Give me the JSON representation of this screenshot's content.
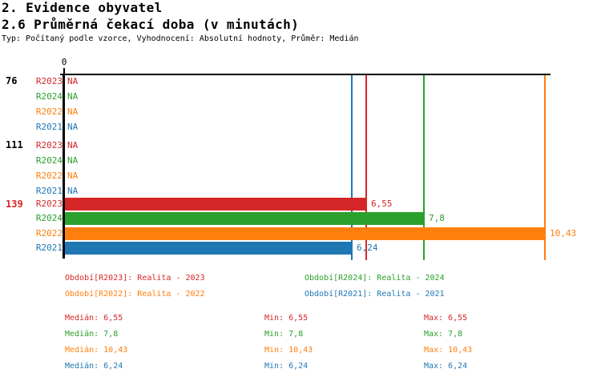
{
  "header": {
    "title1": "2. Evidence obyvatel",
    "title2": "2.6 Průměrná čekací doba (v minutách)",
    "subtitle": "Typ: Počítaný podle vzorce, Vyhodnocení: Absolutní hodnoty, Průměr: Medián"
  },
  "colors": {
    "R2023": "#d62728",
    "R2024": "#2ca02c",
    "R2022": "#ff7f0e",
    "R2021": "#1f77b4",
    "axis": "#000000"
  },
  "chart_data": {
    "type": "bar",
    "orientation": "horizontal",
    "title": "2.6 Průměrná čekací doba (v minutách)",
    "xlabel": "",
    "ylabel": "",
    "axis": {
      "min": 0,
      "tick_labels": [
        "0"
      ],
      "grid": false
    },
    "series_order": [
      "R2023",
      "R2024",
      "R2022",
      "R2021"
    ],
    "groups": [
      {
        "label": "76",
        "label_color": "#000000",
        "rows": [
          {
            "series": "R2023",
            "display": "NA",
            "value": null
          },
          {
            "series": "R2024",
            "display": "NA",
            "value": null
          },
          {
            "series": "R2022",
            "display": "NA",
            "value": null
          },
          {
            "series": "R2021",
            "display": "NA",
            "value": null
          }
        ]
      },
      {
        "label": "111",
        "label_color": "#000000",
        "rows": [
          {
            "series": "R2023",
            "display": "NA",
            "value": null
          },
          {
            "series": "R2024",
            "display": "NA",
            "value": null
          },
          {
            "series": "R2022",
            "display": "NA",
            "value": null
          },
          {
            "series": "R2021",
            "display": "NA",
            "value": null
          }
        ]
      },
      {
        "label": "139",
        "label_color": "#d62728",
        "rows": [
          {
            "series": "R2023",
            "display": "6,55",
            "value": 6.55
          },
          {
            "series": "R2024",
            "display": "7,8",
            "value": 7.8
          },
          {
            "series": "R2022",
            "display": "10,43",
            "value": 10.43
          },
          {
            "series": "R2021",
            "display": "6,24",
            "value": 6.24
          }
        ]
      }
    ],
    "reference_lines": [
      {
        "series": "R2023",
        "value": 6.55
      },
      {
        "series": "R2024",
        "value": 7.8
      },
      {
        "series": "R2022",
        "value": 10.43
      },
      {
        "series": "R2021",
        "value": 6.24
      }
    ]
  },
  "legend": {
    "items": [
      {
        "series": "R2023",
        "label": "Období[R2023]: Realita - 2023",
        "col": 0,
        "row": 0
      },
      {
        "series": "R2024",
        "label": "Období[R2024]: Realita - 2024",
        "col": 1,
        "row": 0
      },
      {
        "series": "R2022",
        "label": "Období[R2022]: Realita - 2022",
        "col": 0,
        "row": 1
      },
      {
        "series": "R2021",
        "label": "Období[R2021]: Realita - 2021",
        "col": 1,
        "row": 1
      }
    ]
  },
  "stats": {
    "rows": [
      {
        "series": "R2023",
        "median": "Medián: 6,55",
        "min": "Min: 6,55",
        "max": "Max: 6,55"
      },
      {
        "series": "R2024",
        "median": "Medián: 7,8",
        "min": "Min: 7,8",
        "max": "Max: 7,8"
      },
      {
        "series": "R2022",
        "median": "Medián: 10,43",
        "min": "Min: 10,43",
        "max": "Max: 10,43"
      },
      {
        "series": "R2021",
        "median": "Medián: 6,24",
        "min": "Min: 6,24",
        "max": "Max: 6,24"
      }
    ]
  }
}
